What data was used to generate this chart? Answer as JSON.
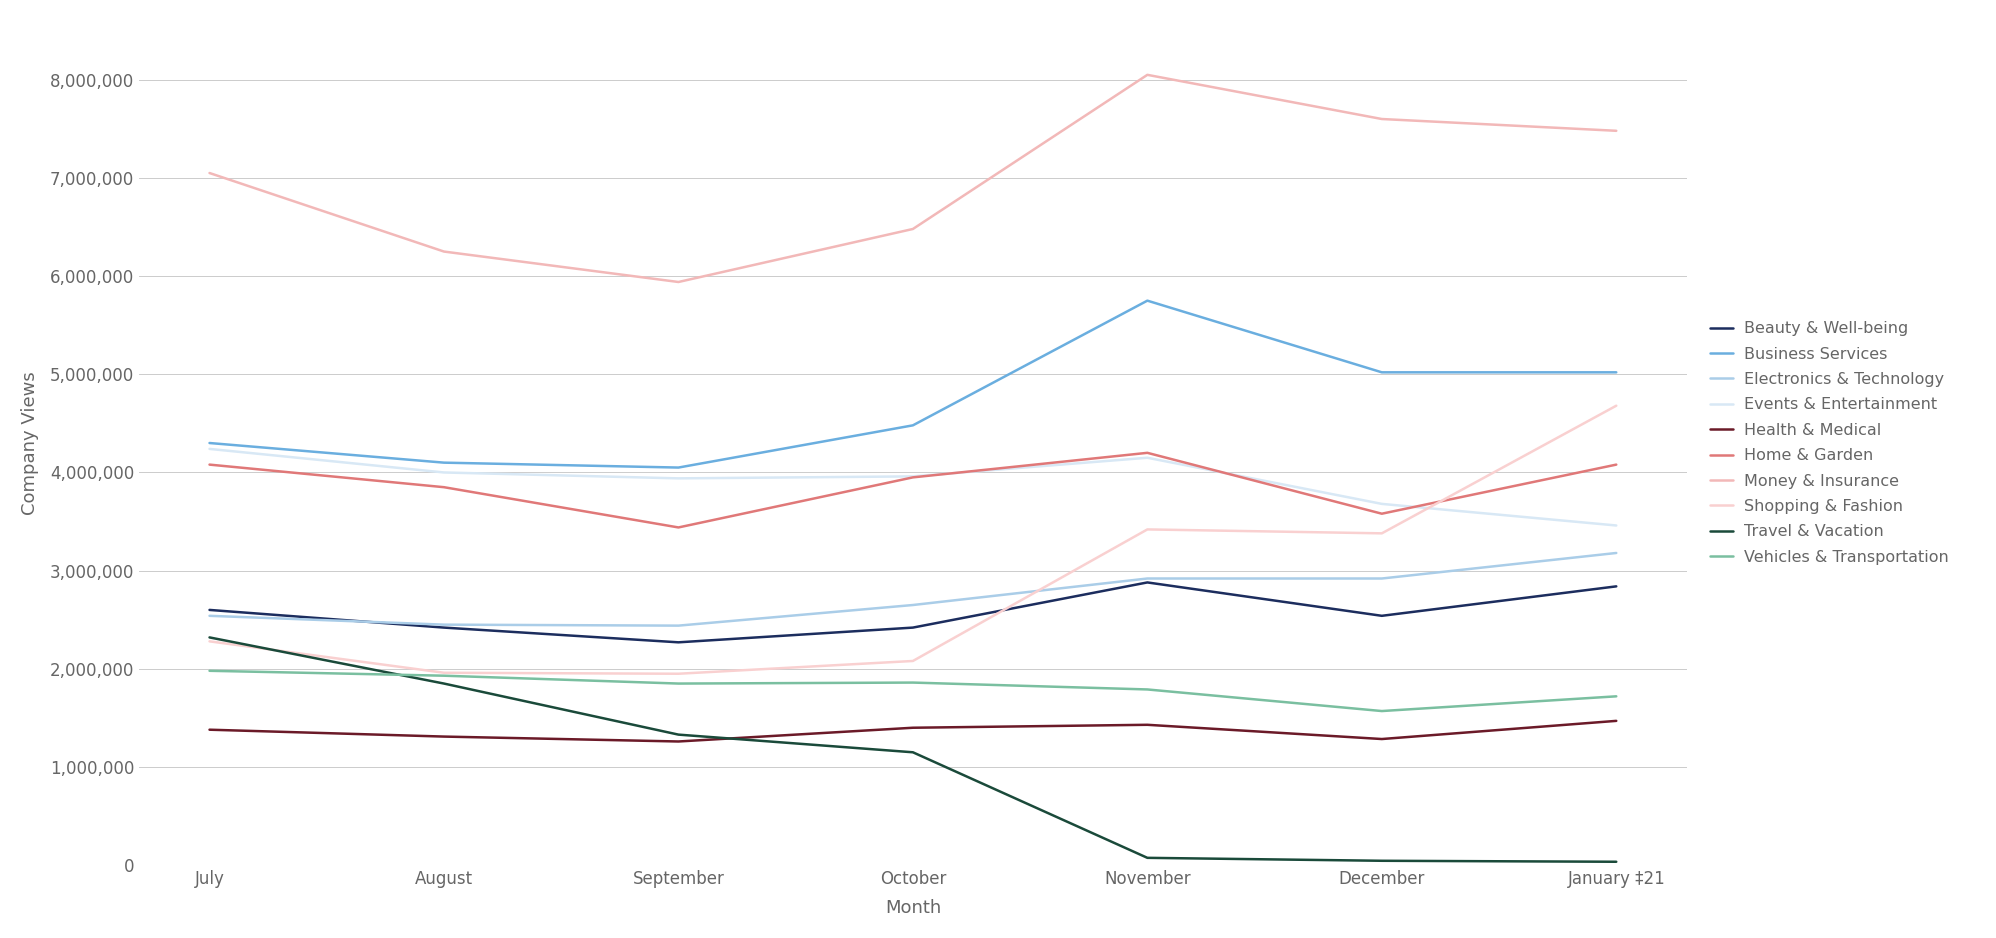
{
  "months": [
    "July",
    "August",
    "September",
    "October",
    "November",
    "December",
    "January ‡21"
  ],
  "series": {
    "Beauty & Well-being": {
      "values": [
        2600000,
        2420000,
        2270000,
        2420000,
        2880000,
        2540000,
        2840000
      ],
      "color": "#1c2d5e",
      "linewidth": 1.8
    },
    "Business Services": {
      "values": [
        4300000,
        4100000,
        4050000,
        4480000,
        5750000,
        5020000,
        5020000
      ],
      "color": "#6aaedf",
      "linewidth": 1.8
    },
    "Electronics & Technology": {
      "values": [
        2540000,
        2450000,
        2440000,
        2650000,
        2920000,
        2920000,
        3180000
      ],
      "color": "#aacde8",
      "linewidth": 1.8
    },
    "Events & Entertainment": {
      "values": [
        4240000,
        4000000,
        3940000,
        3960000,
        4150000,
        3680000,
        3460000
      ],
      "color": "#d8e8f5",
      "linewidth": 1.8
    },
    "Health & Medical": {
      "values": [
        1380000,
        1310000,
        1260000,
        1400000,
        1430000,
        1285000,
        1470000
      ],
      "color": "#6b1a28",
      "linewidth": 1.8
    },
    "Home & Garden": {
      "values": [
        4080000,
        3850000,
        3440000,
        3950000,
        4200000,
        3580000,
        4080000
      ],
      "color": "#e07878",
      "linewidth": 1.8
    },
    "Money & Insurance": {
      "values": [
        7050000,
        6250000,
        5940000,
        6480000,
        8050000,
        7600000,
        7480000
      ],
      "color": "#f2b8b8",
      "linewidth": 1.8
    },
    "Shopping & Fashion": {
      "values": [
        2280000,
        1960000,
        1950000,
        2080000,
        3420000,
        3380000,
        4680000
      ],
      "color": "#f9d0d0",
      "linewidth": 1.8
    },
    "Travel & Vacation": {
      "values": [
        2320000,
        1850000,
        1330000,
        1150000,
        75000,
        45000,
        35000
      ],
      "color": "#1a4a3a",
      "linewidth": 1.8
    },
    "Vehicles & Transportation": {
      "values": [
        1980000,
        1930000,
        1850000,
        1860000,
        1790000,
        1570000,
        1720000
      ],
      "color": "#7abfa0",
      "linewidth": 1.8
    }
  },
  "xlabel": "Month",
  "ylabel": "Company Views",
  "ylim": [
    0,
    8600000
  ],
  "yticks": [
    0,
    1000000,
    2000000,
    3000000,
    4000000,
    5000000,
    6000000,
    7000000,
    8000000
  ],
  "background_color": "#ffffff",
  "grid_color": "#cccccc"
}
